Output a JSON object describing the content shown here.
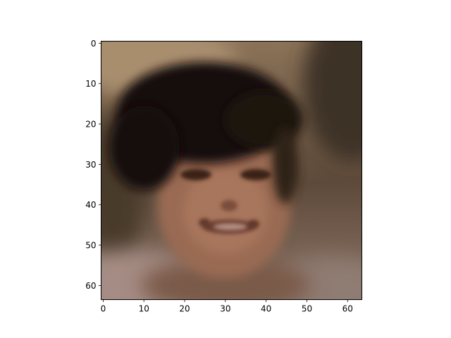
{
  "chart_data": {
    "type": "heatmap",
    "subtype": "image",
    "image_description": "blurred 64x64 RGB reconstruction of a smiling face with dark hair on a brownish background",
    "image_shape": [
      64,
      64,
      3
    ],
    "title": "",
    "xlabel": "",
    "ylabel": "",
    "xlim": [
      -0.5,
      63.5
    ],
    "ylim": [
      63.5,
      -0.5
    ],
    "y_axis_inverted": true,
    "grid": false,
    "xticks": [
      0,
      10,
      20,
      30,
      40,
      50,
      60
    ],
    "yticks": [
      0,
      10,
      20,
      30,
      40,
      50,
      60
    ],
    "xtick_labels": [
      "0",
      "10",
      "20",
      "30",
      "40",
      "50",
      "60"
    ],
    "ytick_labels": [
      "0",
      "10",
      "20",
      "30",
      "40",
      "50",
      "60"
    ]
  }
}
